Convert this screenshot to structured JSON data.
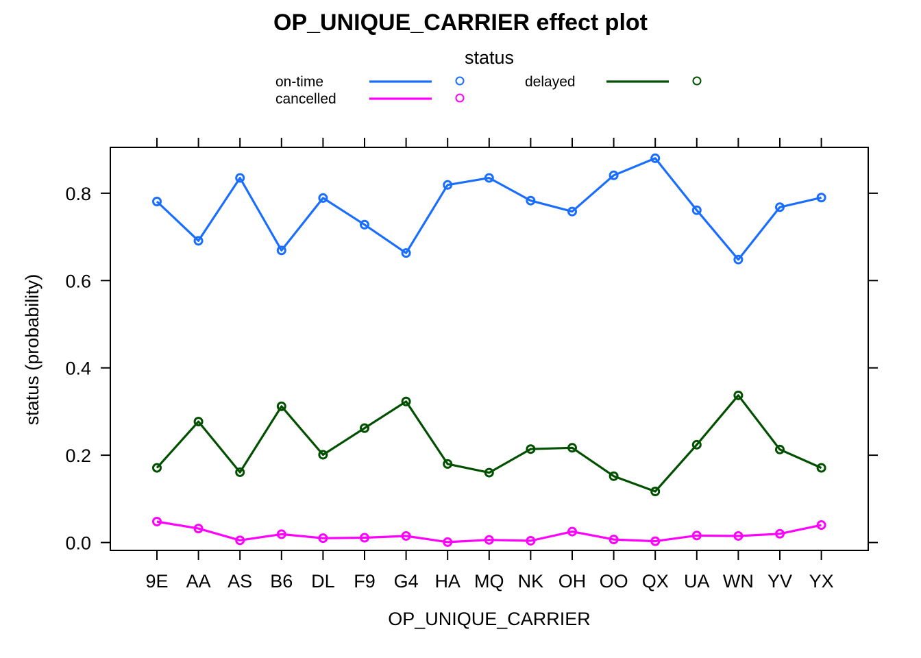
{
  "chart_data": {
    "type": "line",
    "title": "OP_UNIQUE_CARRIER effect plot",
    "xlabel": "OP_UNIQUE_CARRIER",
    "ylabel": "status (probability)",
    "ylim": [
      -0.018,
      0.905
    ],
    "y_ticks": [
      0.0,
      0.2,
      0.4,
      0.6,
      0.8
    ],
    "y_tick_labels": [
      "0.0",
      "0.2",
      "0.4",
      "0.6",
      "0.8"
    ],
    "categories": [
      "9E",
      "AA",
      "AS",
      "B6",
      "DL",
      "F9",
      "G4",
      "HA",
      "MQ",
      "NK",
      "OH",
      "OO",
      "QX",
      "UA",
      "WN",
      "YV",
      "YX"
    ],
    "legend": {
      "title": "status",
      "position": "top"
    },
    "series": [
      {
        "name": "on-time",
        "color": "#1a6eff",
        "values": [
          0.781,
          0.691,
          0.835,
          0.669,
          0.789,
          0.728,
          0.663,
          0.819,
          0.835,
          0.783,
          0.758,
          0.841,
          0.88,
          0.761,
          0.648,
          0.768,
          0.79
        ]
      },
      {
        "name": "cancelled",
        "color": "#ff00ff",
        "values": [
          0.048,
          0.032,
          0.005,
          0.019,
          0.01,
          0.011,
          0.015,
          0.001,
          0.006,
          0.004,
          0.025,
          0.007,
          0.003,
          0.016,
          0.015,
          0.02,
          0.04
        ]
      },
      {
        "name": "delayed",
        "color": "#005000",
        "values": [
          0.171,
          0.277,
          0.161,
          0.312,
          0.201,
          0.262,
          0.323,
          0.18,
          0.16,
          0.214,
          0.217,
          0.152,
          0.117,
          0.224,
          0.337,
          0.213,
          0.171
        ]
      }
    ]
  }
}
